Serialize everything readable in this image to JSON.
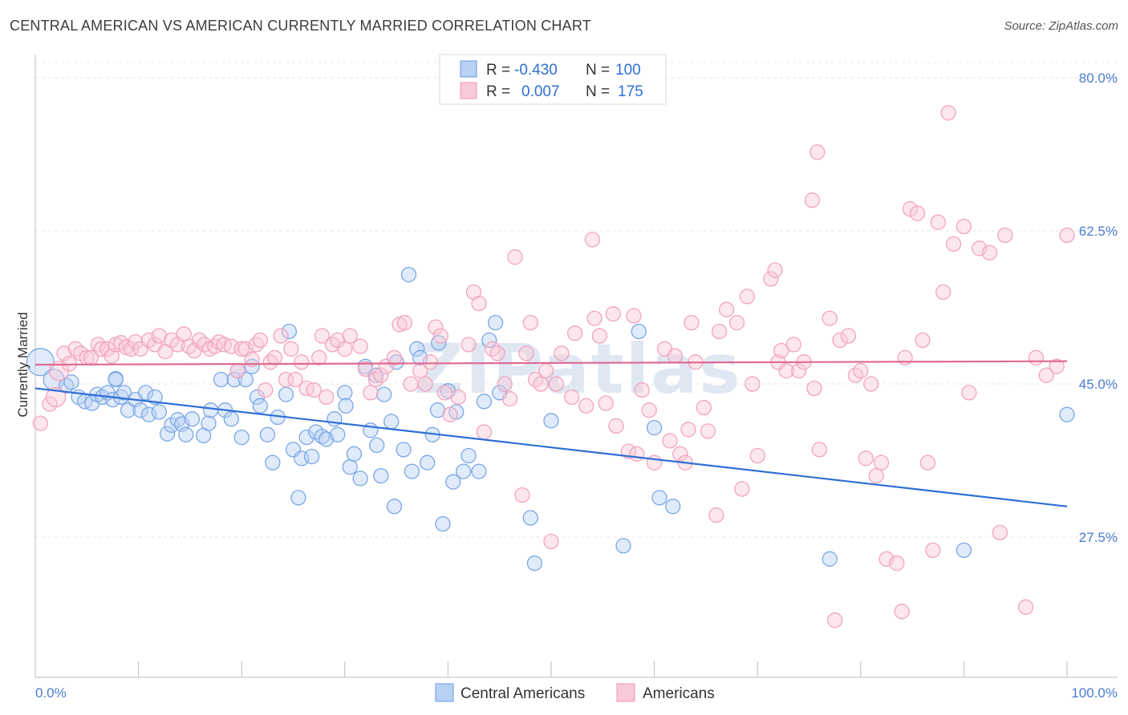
{
  "title": "CENTRAL AMERICAN VS AMERICAN CURRENTLY MARRIED CORRELATION CHART",
  "source": "Source: ZipAtlas.com",
  "watermark": "ZIPatlas",
  "chart_data": {
    "type": "scatter",
    "ylabel": "Currently Married",
    "xlim": [
      0,
      100
    ],
    "ylim": [
      10,
      84
    ],
    "y_ticks": [
      {
        "value": 80,
        "label": "80.0%"
      },
      {
        "value": 62.5,
        "label": "62.5%"
      },
      {
        "value": 45,
        "label": "45.0%"
      },
      {
        "value": 27.5,
        "label": "27.5%"
      }
    ],
    "x_tick_labels": {
      "left": "0.0%",
      "right": "100.0%"
    },
    "grid": true,
    "legend": {
      "placement": "top-center",
      "rows": [
        {
          "r_label": "R =",
          "r_value": "-0.430",
          "n_label": "N =",
          "n_value": "100"
        },
        {
          "r_label": "R =",
          "r_value": "0.007",
          "n_label": "N =",
          "n_value": "175"
        }
      ]
    },
    "series": [
      {
        "name": "Central Americans",
        "color": "#7aa7e6",
        "trend": {
          "x": [
            0,
            100
          ],
          "y": [
            44.5,
            31.0
          ],
          "color": "#2f6fd6"
        },
        "points": [
          [
            0.5,
            47.5
          ],
          [
            1.8,
            45.5
          ],
          [
            3,
            44.8
          ],
          [
            3.5,
            45.2
          ],
          [
            4.2,
            43.5
          ],
          [
            4.8,
            43
          ],
          [
            5.5,
            42.8
          ],
          [
            6,
            43.8
          ],
          [
            6.5,
            43.5
          ],
          [
            7,
            44
          ],
          [
            7.5,
            43.2
          ],
          [
            7.8,
            45.6
          ],
          [
            8.3,
            43.5
          ],
          [
            8.6,
            44
          ],
          [
            9,
            42
          ],
          [
            9.7,
            43.2
          ],
          [
            10.2,
            42
          ],
          [
            10.7,
            44
          ],
          [
            11,
            41.5
          ],
          [
            11.6,
            43.5
          ],
          [
            12,
            41.8
          ],
          [
            12.8,
            39.3
          ],
          [
            13.2,
            40.3
          ],
          [
            13.8,
            40.9
          ],
          [
            14.2,
            40.4
          ],
          [
            14.6,
            39.2
          ],
          [
            15.2,
            41
          ],
          [
            16.3,
            39.1
          ],
          [
            16.8,
            40.5
          ],
          [
            17,
            42
          ],
          [
            18,
            45.5
          ],
          [
            18.4,
            42
          ],
          [
            19,
            41
          ],
          [
            19.3,
            45.5
          ],
          [
            20,
            38.9
          ],
          [
            20.4,
            45.5
          ],
          [
            21,
            47
          ],
          [
            21.5,
            43.5
          ],
          [
            21.8,
            42.5
          ],
          [
            22.5,
            39.2
          ],
          [
            23,
            36
          ],
          [
            23.5,
            41.2
          ],
          [
            24.3,
            43.8
          ],
          [
            24.6,
            51
          ],
          [
            25,
            37.5
          ],
          [
            25.5,
            32
          ],
          [
            25.8,
            36.5
          ],
          [
            26.3,
            38.9
          ],
          [
            26.8,
            36.7
          ],
          [
            27.2,
            39.5
          ],
          [
            27.8,
            39
          ],
          [
            28.2,
            38.7
          ],
          [
            29,
            41
          ],
          [
            29.3,
            39.2
          ],
          [
            30,
            44
          ],
          [
            30.5,
            35.5
          ],
          [
            30.9,
            37
          ],
          [
            31.5,
            34.2
          ],
          [
            32,
            47
          ],
          [
            32.5,
            39.7
          ],
          [
            33,
            46
          ],
          [
            33.5,
            34.5
          ],
          [
            33.8,
            43.8
          ],
          [
            34.5,
            40.7
          ],
          [
            34.8,
            31
          ],
          [
            35,
            47.5
          ],
          [
            35.7,
            37.5
          ],
          [
            36.2,
            57.5
          ],
          [
            36.5,
            35
          ],
          [
            37,
            49
          ],
          [
            37.3,
            48
          ],
          [
            38,
            36
          ],
          [
            38.5,
            39.2
          ],
          [
            39,
            42
          ],
          [
            39.1,
            49.7
          ],
          [
            39.5,
            29
          ],
          [
            40,
            44.2
          ],
          [
            40.5,
            33.8
          ],
          [
            40.8,
            41.8
          ],
          [
            41.5,
            35
          ],
          [
            42,
            36.8
          ],
          [
            43,
            35
          ],
          [
            44,
            50
          ],
          [
            44.6,
            52
          ],
          [
            48,
            29.7
          ],
          [
            48.4,
            24.5
          ],
          [
            50,
            40.8
          ],
          [
            57,
            26.5
          ],
          [
            58.5,
            51
          ],
          [
            60,
            40
          ],
          [
            60.5,
            32
          ],
          [
            61.8,
            31
          ],
          [
            77,
            25
          ],
          [
            90,
            26
          ],
          [
            100,
            41.5
          ],
          [
            7.8,
            45.5
          ],
          [
            19.6,
            46.5
          ],
          [
            30.1,
            42.5
          ],
          [
            33.1,
            38
          ],
          [
            45,
            44
          ],
          [
            43.5,
            43
          ]
        ]
      },
      {
        "name": "Americans",
        "color": "#f2a3bd",
        "trend": {
          "x": [
            0,
            100
          ],
          "y": [
            47.2,
            47.6
          ],
          "color": "#e06a92"
        },
        "points": [
          [
            0.5,
            40.5
          ],
          [
            1.4,
            42.7
          ],
          [
            2,
            43.5
          ],
          [
            2.3,
            46.5
          ],
          [
            2.8,
            48.5
          ],
          [
            3.3,
            47.3
          ],
          [
            3.9,
            49
          ],
          [
            4.4,
            48.5
          ],
          [
            5,
            48
          ],
          [
            5.4,
            48
          ],
          [
            6.1,
            49.5
          ],
          [
            6.4,
            49
          ],
          [
            7,
            49
          ],
          [
            7.4,
            48.2
          ],
          [
            7.8,
            49.5
          ],
          [
            8.3,
            49.7
          ],
          [
            8.8,
            49.2
          ],
          [
            9.3,
            49
          ],
          [
            9.7,
            49.8
          ],
          [
            10.2,
            49
          ],
          [
            11,
            50
          ],
          [
            11.6,
            49.5
          ],
          [
            12,
            50.5
          ],
          [
            12.6,
            48.7
          ],
          [
            13.2,
            50
          ],
          [
            13.8,
            49.5
          ],
          [
            14.4,
            50.7
          ],
          [
            14.9,
            49.3
          ],
          [
            15.4,
            48.8
          ],
          [
            15.9,
            50
          ],
          [
            16.4,
            49.5
          ],
          [
            16.9,
            49
          ],
          [
            17.4,
            49.3
          ],
          [
            17.8,
            49.8
          ],
          [
            18.3,
            49.5
          ],
          [
            19,
            49.3
          ],
          [
            19.6,
            46.5
          ],
          [
            20,
            49
          ],
          [
            20.4,
            49
          ],
          [
            21,
            47.8
          ],
          [
            21.4,
            49.5
          ],
          [
            21.8,
            50
          ],
          [
            22.3,
            44.3
          ],
          [
            22.8,
            47.5
          ],
          [
            23.2,
            48
          ],
          [
            23.8,
            50.5
          ],
          [
            24.3,
            45.5
          ],
          [
            24.8,
            49
          ],
          [
            25.2,
            45.5
          ],
          [
            25.8,
            47.5
          ],
          [
            26.3,
            44.5
          ],
          [
            27,
            44.3
          ],
          [
            27.5,
            48
          ],
          [
            27.8,
            50.5
          ],
          [
            28.2,
            43.5
          ],
          [
            28.8,
            49.5
          ],
          [
            29.3,
            50
          ],
          [
            30,
            49
          ],
          [
            30.5,
            50.5
          ],
          [
            31.5,
            49.3
          ],
          [
            32,
            46.7
          ],
          [
            32.5,
            44
          ],
          [
            33,
            45.5
          ],
          [
            33.5,
            46
          ],
          [
            34,
            47
          ],
          [
            34.8,
            48
          ],
          [
            35.3,
            51.8
          ],
          [
            35.8,
            52
          ],
          [
            36.4,
            45
          ],
          [
            37.3,
            46.5
          ],
          [
            37.8,
            45
          ],
          [
            38.3,
            47.5
          ],
          [
            38.8,
            51.5
          ],
          [
            39.3,
            50.5
          ],
          [
            39.7,
            44
          ],
          [
            40.2,
            41.5
          ],
          [
            41,
            43.5
          ],
          [
            42,
            49.5
          ],
          [
            42.5,
            55.5
          ],
          [
            43,
            54.2
          ],
          [
            43.5,
            39.5
          ],
          [
            44.3,
            49
          ],
          [
            44.8,
            48.5
          ],
          [
            45.5,
            45
          ],
          [
            46,
            43.3
          ],
          [
            46.5,
            59.5
          ],
          [
            47.2,
            32.3
          ],
          [
            47.6,
            48.5
          ],
          [
            48,
            52
          ],
          [
            48.5,
            45.5
          ],
          [
            49,
            45
          ],
          [
            49.5,
            46.5
          ],
          [
            50,
            27
          ],
          [
            50.5,
            45
          ],
          [
            51,
            48.5
          ],
          [
            52,
            43.5
          ],
          [
            52.3,
            50.8
          ],
          [
            53.4,
            42.5
          ],
          [
            54,
            61.5
          ],
          [
            54.2,
            52.5
          ],
          [
            54.7,
            50.5
          ],
          [
            55.3,
            42.8
          ],
          [
            56,
            53
          ],
          [
            56.3,
            40.2
          ],
          [
            57.5,
            37.3
          ],
          [
            58,
            52.8
          ],
          [
            58.3,
            37
          ],
          [
            58.8,
            44.3
          ],
          [
            59.5,
            42
          ],
          [
            60,
            36
          ],
          [
            61,
            49
          ],
          [
            61.5,
            38.5
          ],
          [
            62,
            48.2
          ],
          [
            62.5,
            37
          ],
          [
            63,
            36
          ],
          [
            63.3,
            39.8
          ],
          [
            63.6,
            52
          ],
          [
            64,
            47.5
          ],
          [
            64.8,
            42.3
          ],
          [
            65.2,
            39.6
          ],
          [
            66,
            30
          ],
          [
            66.3,
            51
          ],
          [
            67,
            53.5
          ],
          [
            68,
            52
          ],
          [
            68.5,
            33
          ],
          [
            69,
            55
          ],
          [
            69.5,
            45
          ],
          [
            70,
            36.8
          ],
          [
            71.3,
            57
          ],
          [
            71.7,
            58
          ],
          [
            72,
            47.5
          ],
          [
            72.3,
            48.8
          ],
          [
            72.8,
            46.5
          ],
          [
            73.5,
            49.5
          ],
          [
            74,
            46.5
          ],
          [
            74.5,
            47.5
          ],
          [
            75.3,
            66
          ],
          [
            75.8,
            71.5
          ],
          [
            76,
            37.5
          ],
          [
            77,
            52.5
          ],
          [
            78,
            50
          ],
          [
            78.8,
            50.5
          ],
          [
            79.5,
            46
          ],
          [
            80,
            46.5
          ],
          [
            80.5,
            36.5
          ],
          [
            81,
            45
          ],
          [
            81.5,
            34.5
          ],
          [
            82,
            36
          ],
          [
            82.5,
            25
          ],
          [
            83.5,
            24.5
          ],
          [
            84,
            19
          ],
          [
            84.3,
            48
          ],
          [
            84.8,
            65
          ],
          [
            85.5,
            64.5
          ],
          [
            86,
            50
          ],
          [
            86.5,
            36
          ],
          [
            87,
            26
          ],
          [
            87.5,
            63.5
          ],
          [
            88,
            55.5
          ],
          [
            88.5,
            76
          ],
          [
            89,
            61
          ],
          [
            90,
            63
          ],
          [
            90.5,
            44
          ],
          [
            91.5,
            60.5
          ],
          [
            92.5,
            60
          ],
          [
            93.5,
            28
          ],
          [
            94,
            62
          ],
          [
            96,
            19.5
          ],
          [
            97,
            48
          ],
          [
            98,
            46
          ],
          [
            99,
            47
          ],
          [
            100,
            62
          ],
          [
            75.5,
            44.5
          ],
          [
            77.5,
            18
          ]
        ]
      }
    ]
  }
}
